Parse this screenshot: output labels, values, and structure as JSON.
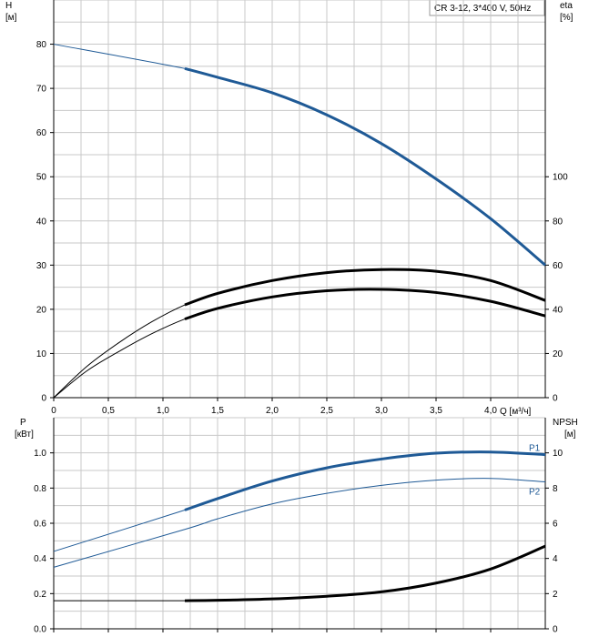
{
  "title_box": "CR 3-12, 3*400 V, 50Hz",
  "colors": {
    "blue": "#1f5a96",
    "black": "#000000",
    "grid": "#c8c8c8",
    "axis": "#000000"
  },
  "chart_data": [
    {
      "type": "line",
      "ylabel": "H",
      "yunit": "[м]",
      "y2label": "eta",
      "y2unit": "[%]",
      "xlabel": "Q [м³/ч]",
      "xlim": [
        0,
        4.5
      ],
      "ylim": [
        0,
        90
      ],
      "y2lim": [
        0,
        180
      ],
      "grid": true,
      "xticks": [
        0,
        0.5,
        1.0,
        1.5,
        2.0,
        2.5,
        3.0,
        3.5,
        4.0
      ],
      "xtick_labels": [
        "0",
        "0,5",
        "1,0",
        "1,5",
        "2,0",
        "2,5",
        "3,0",
        "3,5",
        "4,0"
      ],
      "yticks": [
        0,
        10,
        20,
        30,
        40,
        50,
        60,
        70,
        80
      ],
      "ytick_labels": [
        "0",
        "10",
        "20",
        "30",
        "40",
        "50",
        "60",
        "70",
        "80"
      ],
      "y2ticks": [
        0,
        20,
        40,
        60,
        80,
        100
      ],
      "y2tick_labels": [
        "0",
        "20",
        "40",
        "60",
        "80",
        "100"
      ],
      "series": [
        {
          "key": "H",
          "axis": "left",
          "color": "#1f5a96",
          "x": [
            0,
            1.2,
            1.5,
            2.0,
            2.5,
            3.0,
            3.5,
            4.0,
            4.5
          ],
          "y": [
            80,
            74.5,
            72.5,
            69,
            64,
            57.5,
            49.5,
            40.5,
            30
          ],
          "bold_from": 1.2
        },
        {
          "key": "eta_upper",
          "axis": "left",
          "color": "#000000",
          "x": [
            0,
            0.3,
            0.6,
            0.9,
            1.2,
            1.5,
            2.0,
            2.5,
            3.0,
            3.5,
            4.0,
            4.5
          ],
          "y": [
            0,
            7,
            12.5,
            17.2,
            21,
            23.6,
            26.5,
            28.3,
            29,
            28.6,
            26.5,
            22
          ],
          "bold_from": 1.2
        },
        {
          "key": "eta_lower",
          "axis": "left",
          "color": "#000000",
          "x": [
            0,
            0.3,
            0.6,
            0.9,
            1.2,
            1.5,
            2.0,
            2.5,
            3.0,
            3.5,
            4.0,
            4.5
          ],
          "y": [
            0,
            6,
            10.5,
            14.5,
            17.8,
            20.2,
            22.8,
            24.2,
            24.5,
            23.8,
            21.8,
            18.5
          ],
          "bold_from": 1.2
        }
      ]
    },
    {
      "type": "line",
      "ylabel": "P",
      "yunit": "[кВт]",
      "y2label": "NPSH",
      "y2unit": "[м]",
      "xlim": [
        0,
        4.5
      ],
      "ylim": [
        0,
        1.2
      ],
      "y2lim": [
        0,
        12
      ],
      "grid": true,
      "xticks": [
        0,
        0.5,
        1.0,
        1.5,
        2.0,
        2.5,
        3.0,
        3.5,
        4.0
      ],
      "yticks": [
        0,
        0.2,
        0.4,
        0.6,
        0.8,
        1.0
      ],
      "ytick_labels": [
        "0.0",
        "0.2",
        "0.4",
        "0.6",
        "0.8",
        "1.0"
      ],
      "y2ticks": [
        0,
        2,
        4,
        6,
        8,
        10
      ],
      "y2tick_labels": [
        "0",
        "2",
        "4",
        "6",
        "8",
        "10"
      ],
      "series": [
        {
          "key": "P1",
          "name": "P1",
          "axis": "left",
          "color": "#1f5a96",
          "x": [
            0,
            1.2,
            1.5,
            2.0,
            2.5,
            3.0,
            3.5,
            4.0,
            4.5
          ],
          "y": [
            0.44,
            0.675,
            0.74,
            0.84,
            0.915,
            0.965,
            0.998,
            1.005,
            0.99
          ],
          "bold_from": 1.2
        },
        {
          "key": "P2",
          "name": "P2",
          "axis": "left",
          "color": "#1f5a96",
          "x": [
            0,
            1.2,
            1.5,
            2.0,
            2.5,
            3.0,
            3.5,
            4.0,
            4.5
          ],
          "y": [
            0.35,
            0.565,
            0.625,
            0.71,
            0.77,
            0.815,
            0.845,
            0.855,
            0.835
          ],
          "bold_from": 99
        },
        {
          "key": "NPSH",
          "axis": "right",
          "color": "#000000",
          "x": [
            0,
            1.2,
            1.5,
            2.0,
            2.5,
            3.0,
            3.5,
            4.0,
            4.5
          ],
          "y": [
            1.6,
            1.6,
            1.62,
            1.7,
            1.85,
            2.1,
            2.6,
            3.4,
            4.7
          ],
          "bold_from": 1.2
        }
      ]
    }
  ]
}
